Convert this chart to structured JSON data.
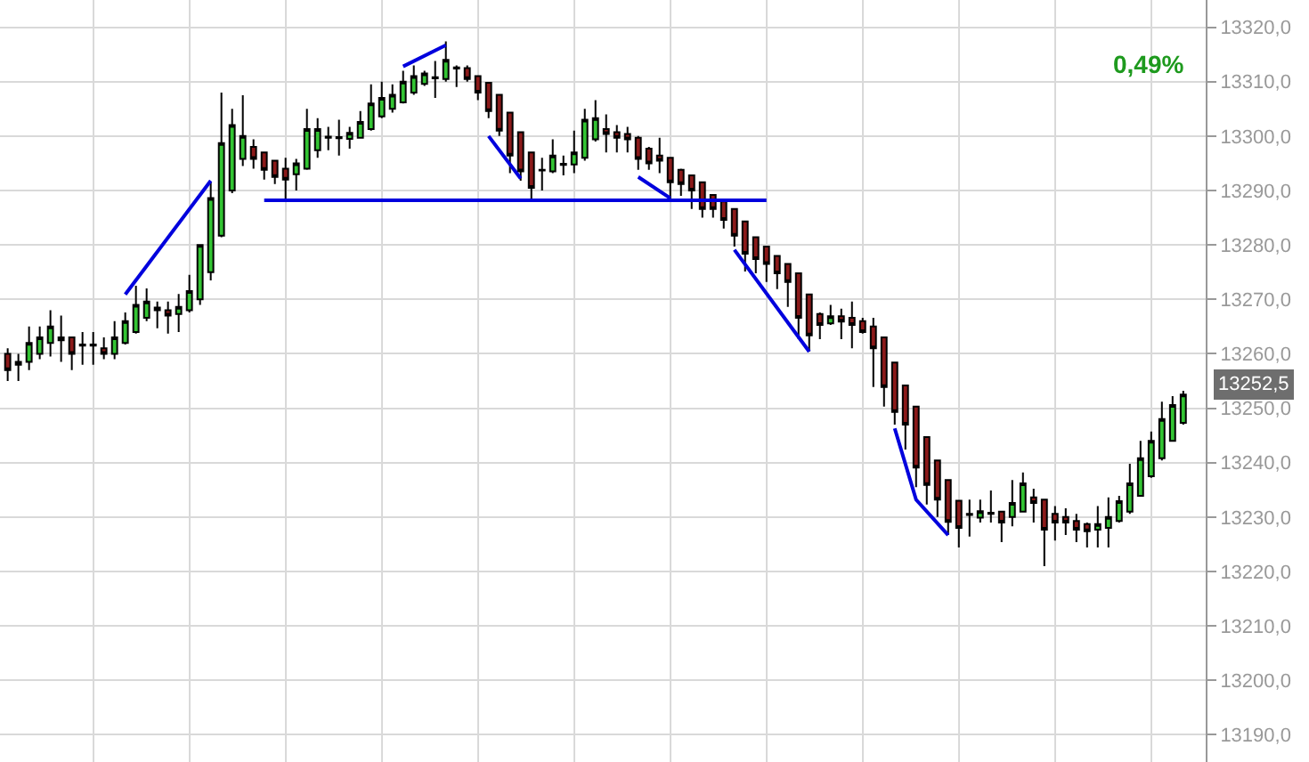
{
  "chart_data": {
    "type": "candlestick",
    "categories": [
      null,
      null,
      null,
      null,
      null,
      null,
      null,
      null,
      null,
      null,
      null,
      null,
      null,
      null,
      null,
      null,
      null,
      null,
      null,
      null,
      null,
      null,
      null,
      null,
      null,
      null,
      null,
      null,
      null,
      null,
      null,
      null,
      null,
      null,
      null,
      null,
      null,
      null,
      null,
      null,
      null,
      null,
      null,
      null,
      null,
      null,
      null,
      null,
      null,
      null,
      null,
      null,
      null,
      null,
      null,
      null,
      null,
      null,
      null,
      null,
      null,
      null,
      null,
      null,
      null,
      null,
      null,
      null,
      null,
      null,
      null,
      null,
      null,
      null,
      null,
      null,
      null,
      null,
      null,
      null,
      null,
      null,
      null,
      null,
      null,
      null,
      null,
      null,
      null,
      null,
      null,
      null,
      null,
      null,
      null,
      null,
      null,
      null,
      null,
      null,
      null,
      null,
      null,
      null,
      null,
      null,
      null,
      null,
      null,
      null,
      null
    ],
    "colors": [
      "#8b1a1a",
      "#000000",
      "#33c433",
      "#33c433",
      "#33c433",
      "#000000",
      "#8b1a1a",
      "#000000",
      "#000000",
      "#8b1a1a",
      "#33c433",
      "#33c433",
      "#33c433",
      "#33c433",
      "#000000",
      "#8b1a1a",
      "#33c433",
      "#33c433",
      "#33c433",
      "#33c433",
      "#33c433",
      "#33c433",
      "#33c433",
      "#8b1a1a",
      "#8b1a1a",
      "#8b1a1a",
      "#8b1a1a",
      "#33c433",
      "#33c433",
      "#33c433",
      "#000000",
      "#000000",
      "#33c433",
      "#33c433",
      "#33c433",
      "#33c433",
      "#33c433",
      "#33c433",
      "#33c433",
      "#33c433",
      "#000000",
      "#33c433",
      "#000000",
      "#8b1a1a",
      "#8b1a1a",
      "#8b1a1a",
      "#8b1a1a",
      "#8b1a1a",
      "#8b1a1a",
      "#8b1a1a",
      "#000000",
      "#33c433",
      "#000000",
      "#33c433",
      "#33c433",
      "#33c433",
      "#8b1a1a",
      "#8b1a1a",
      "#8b1a1a",
      "#8b1a1a",
      "#8b1a1a",
      "#8b1a1a",
      "#8b1a1a",
      "#8b1a1a",
      "#8b1a1a",
      "#8b1a1a",
      "#8b1a1a",
      "#8b1a1a",
      "#8b1a1a",
      "#8b1a1a",
      "#8b1a1a",
      "#8b1a1a",
      "#8b1a1a",
      "#8b1a1a",
      "#8b1a1a",
      "#8b1a1a",
      "#8b1a1a",
      "#33c433",
      "#8b1a1a",
      "#8b1a1a",
      "#8b1a1a",
      "#8b1a1a",
      "#8b1a1a",
      "#8b1a1a",
      "#8b1a1a",
      "#8b1a1a",
      "#8b1a1a",
      "#8b1a1a",
      "#8b1a1a",
      "#8b1a1a",
      "#000000",
      "#33c433",
      "#000000",
      "#8b1a1a",
      "#33c433",
      "#33c433",
      "#8b1a1a",
      "#8b1a1a",
      "#8b1a1a",
      "#8b1a1a",
      "#8b1a1a",
      "#8b1a1a",
      "#33c433",
      "#33c433",
      "#33c433",
      "#33c433",
      "#33c433",
      "#33c433",
      "#33c433",
      "#33c433",
      "#33c433"
    ],
    "ohlc": [
      [
        13260,
        13261,
        13255,
        13257
      ],
      [
        13258,
        13260,
        13255,
        13258.5
      ],
      [
        13258.5,
        13265,
        13257,
        13262
      ],
      [
        13260,
        13265,
        13259,
        13263
      ],
      [
        13262,
        13268,
        13259.5,
        13265
      ],
      [
        13263,
        13267,
        13258.5,
        13262.5
      ],
      [
        13263,
        13263,
        13257,
        13260
      ],
      [
        13261.5,
        13264,
        13258,
        13261.7
      ],
      [
        13261.7,
        13264,
        13258,
        13261.5
      ],
      [
        13261,
        13263,
        13259,
        13260
      ],
      [
        13260,
        13266,
        13259,
        13263
      ],
      [
        13262,
        13267.6,
        13261.7,
        13266
      ],
      [
        13264,
        13272.5,
        13263.7,
        13269
      ],
      [
        13266.6,
        13272,
        13266,
        13269.6
      ],
      [
        13268,
        13269.6,
        13264.7,
        13268.5
      ],
      [
        13268,
        13269.6,
        13263.7,
        13267
      ],
      [
        13267.3,
        13271,
        13264,
        13268.6
      ],
      [
        13268,
        13274.5,
        13267.6,
        13271.5
      ],
      [
        13270,
        13280,
        13269,
        13280
      ],
      [
        13275,
        13291.5,
        13273.5,
        13288.6
      ],
      [
        13281.7,
        13308,
        13281.4,
        13298.7
      ],
      [
        13290,
        13305,
        13289.5,
        13302
      ],
      [
        13295.8,
        13307.5,
        13294.5,
        13300
      ],
      [
        13298,
        13299.4,
        13294,
        13295.8
      ],
      [
        13297,
        13297,
        13292,
        13293.8
      ],
      [
        13295.5,
        13295.5,
        13291.2,
        13292.5
      ],
      [
        13294,
        13296,
        13288,
        13292
      ],
      [
        13293,
        13295.8,
        13290,
        13295
      ],
      [
        13294,
        13305,
        13293.8,
        13301.3
      ],
      [
        13297.4,
        13303.3,
        13296,
        13301.3
      ],
      [
        13299.7,
        13301.7,
        13297.4,
        13299.9
      ],
      [
        13299.8,
        13303,
        13296.4,
        13299.6
      ],
      [
        13299.5,
        13301.7,
        13297.7,
        13300.6
      ],
      [
        13299.7,
        13304.6,
        13299.7,
        13302.6
      ],
      [
        13301.3,
        13309.5,
        13301,
        13306
      ],
      [
        13303.6,
        13310,
        13303.3,
        13307
      ],
      [
        13305,
        13309.5,
        13304.3,
        13307.6
      ],
      [
        13306.2,
        13312,
        13306,
        13310
      ],
      [
        13308,
        13313,
        13307.6,
        13311
      ],
      [
        13309.6,
        13312,
        13309.2,
        13311.5
      ],
      [
        13310.6,
        13313.8,
        13307,
        13310.8
      ],
      [
        13310.5,
        13317.4,
        13310,
        13314
      ],
      [
        13312.6,
        13313,
        13309,
        13312.4
      ],
      [
        13312.5,
        13313,
        13310,
        13310.5
      ],
      [
        13311,
        13311,
        13306.6,
        13308
      ],
      [
        13309.8,
        13309.8,
        13303.3,
        13304.6
      ],
      [
        13307.6,
        13307.6,
        13300,
        13301
      ],
      [
        13304.3,
        13304.3,
        13293.2,
        13296.4
      ],
      [
        13300.7,
        13300.7,
        13291.8,
        13293.5
      ],
      [
        13297,
        13297,
        13288.2,
        13290.5
      ],
      [
        13293.8,
        13296,
        13290,
        13293.7
      ],
      [
        13293.5,
        13299.4,
        13293.2,
        13296.4
      ],
      [
        13294.7,
        13296.4,
        13292.8,
        13294.9
      ],
      [
        13294.8,
        13301,
        13293.2,
        13297
      ],
      [
        13296,
        13305,
        13295.5,
        13303
      ],
      [
        13299.4,
        13306.6,
        13299,
        13303.3
      ],
      [
        13301.3,
        13304,
        13297,
        13300.4
      ],
      [
        13300.7,
        13302,
        13297,
        13299.7
      ],
      [
        13300.4,
        13301.7,
        13297,
        13299.4
      ],
      [
        13299.7,
        13300,
        13293.8,
        13295.8
      ],
      [
        13297.7,
        13298,
        13293.8,
        13295
      ],
      [
        13296.4,
        13299.7,
        13293.2,
        13295.5
      ],
      [
        13296,
        13296,
        13288.2,
        13291.5
      ],
      [
        13293.8,
        13294,
        13289,
        13291.2
      ],
      [
        13292.8,
        13292.8,
        13286.6,
        13290
      ],
      [
        13291.5,
        13291.5,
        13285,
        13286.6
      ],
      [
        13289.2,
        13289.2,
        13285,
        13286.6
      ],
      [
        13288,
        13288,
        13283,
        13284.6
      ],
      [
        13286.6,
        13286.6,
        13279.7,
        13281.7
      ],
      [
        13284.3,
        13284.3,
        13275.1,
        13278.4
      ],
      [
        13281.4,
        13281.4,
        13274.8,
        13277.4
      ],
      [
        13279.7,
        13279.7,
        13273.2,
        13276.5
      ],
      [
        13278,
        13278,
        13271.9,
        13274.8
      ],
      [
        13276.5,
        13276.5,
        13268.6,
        13273.2
      ],
      [
        13274.8,
        13274.8,
        13262.7,
        13266.6
      ],
      [
        13270.9,
        13270.9,
        13260.4,
        13263.4
      ],
      [
        13267.3,
        13267.6,
        13262.7,
        13265.3
      ],
      [
        13265.6,
        13269,
        13265.3,
        13266.9
      ],
      [
        13266.9,
        13268.3,
        13262.7,
        13265.9
      ],
      [
        13266.6,
        13269.6,
        13261,
        13265.3
      ],
      [
        13266,
        13266.6,
        13263.7,
        13264
      ],
      [
        13265,
        13266.6,
        13253.9,
        13261
      ],
      [
        13263,
        13263,
        13250.3,
        13253.9
      ],
      [
        13258.4,
        13258.4,
        13247,
        13249.3
      ],
      [
        13254.2,
        13254.2,
        13242.4,
        13247
      ],
      [
        13250.3,
        13250.3,
        13235.5,
        13239.1
      ],
      [
        13244.7,
        13244.7,
        13232.3,
        13235.9
      ],
      [
        13240.4,
        13240.4,
        13230,
        13233.2
      ],
      [
        13236.8,
        13236.8,
        13226.7,
        13229.1
      ],
      [
        13233,
        13233,
        13224.4,
        13228
      ],
      [
        13230.6,
        13233.2,
        13226.4,
        13230.4
      ],
      [
        13229.9,
        13233.2,
        13229,
        13231.1
      ],
      [
        13230.6,
        13234.9,
        13229,
        13230.8
      ],
      [
        13231,
        13231,
        13225.4,
        13229
      ],
      [
        13230,
        13236.8,
        13228.3,
        13232.6
      ],
      [
        13231,
        13238.2,
        13231,
        13236.2
      ],
      [
        13233.6,
        13235.2,
        13229,
        13232.6
      ],
      [
        13233.2,
        13233.2,
        13221,
        13227.7
      ],
      [
        13230.6,
        13232,
        13225.7,
        13229
      ],
      [
        13230,
        13231.6,
        13226.7,
        13229
      ],
      [
        13229.3,
        13230.6,
        13225.4,
        13227.7
      ],
      [
        13228.7,
        13229,
        13224.4,
        13227.4
      ],
      [
        13227.7,
        13232,
        13224.4,
        13228.7
      ],
      [
        13228,
        13233.6,
        13224.4,
        13230
      ],
      [
        13229.3,
        13233.9,
        13229,
        13232.9
      ],
      [
        13231,
        13239.8,
        13230.6,
        13236.2
      ],
      [
        13233.9,
        13244,
        13233.9,
        13240.8
      ],
      [
        13237.5,
        13245.7,
        13237.2,
        13244
      ],
      [
        13240.8,
        13251.2,
        13240.4,
        13248
      ],
      [
        13244,
        13252.2,
        13244,
        13250.6
      ],
      [
        13247.3,
        13253.2,
        13247,
        13252.5
      ]
    ],
    "series": [
      {
        "type": "line",
        "color": "#0000dd",
        "values": [
          null,
          null,
          null,
          null,
          null,
          null,
          null,
          null,
          null,
          null,
          null,
          13270.9,
          null,
          null,
          null,
          null,
          null,
          null,
          null,
          13291.8,
          null,
          null,
          null,
          null,
          null,
          null,
          null,
          null,
          null,
          null,
          null,
          null,
          null,
          null,
          null,
          null,
          null,
          null,
          null,
          null,
          null,
          null,
          null,
          null,
          null,
          null,
          null,
          null,
          null,
          null,
          null,
          null,
          null,
          null,
          null,
          null,
          null,
          null,
          null,
          null,
          null,
          null,
          null,
          null,
          null,
          null,
          null,
          null,
          null,
          null,
          null,
          null,
          null,
          null,
          null,
          null,
          null,
          null,
          null,
          null,
          null,
          null,
          null,
          null,
          null,
          null,
          null,
          null,
          null,
          null,
          null,
          null,
          null,
          null,
          null,
          null,
          null,
          null,
          null,
          null,
          null,
          null,
          null,
          null,
          null,
          null,
          null,
          null,
          null,
          null,
          null
        ]
      },
      {
        "type": "line",
        "color": "#0000dd",
        "values": [
          null,
          null,
          null,
          null,
          null,
          null,
          null,
          null,
          null,
          null,
          null,
          null,
          null,
          null,
          null,
          null,
          null,
          null,
          null,
          null,
          null,
          null,
          null,
          null,
          null,
          null,
          null,
          null,
          null,
          null,
          null,
          null,
          null,
          null,
          null,
          null,
          null,
          13312.8,
          null,
          null,
          null,
          13316.7,
          null,
          null,
          null,
          null,
          null,
          null,
          null,
          null,
          null,
          null,
          null,
          null,
          null,
          null,
          null,
          null,
          null,
          null,
          null,
          null,
          null,
          null,
          null,
          null,
          null,
          null,
          null,
          null,
          null,
          null,
          null,
          null,
          null,
          null,
          null,
          null,
          null,
          null,
          null,
          null,
          null,
          null,
          null,
          null,
          null,
          null,
          null,
          null,
          null,
          null,
          null,
          null,
          null,
          null,
          null,
          null,
          null,
          null,
          null,
          null,
          null,
          null,
          null,
          null,
          null,
          null,
          null,
          null,
          null
        ]
      },
      {
        "type": "line",
        "color": "#0000dd",
        "values": [
          null,
          null,
          null,
          null,
          null,
          null,
          null,
          null,
          null,
          null,
          null,
          null,
          null,
          null,
          null,
          null,
          null,
          null,
          null,
          null,
          null,
          null,
          null,
          null,
          null,
          null,
          null,
          null,
          null,
          null,
          null,
          null,
          null,
          null,
          null,
          null,
          null,
          null,
          null,
          null,
          null,
          null,
          null,
          null,
          null,
          13300,
          null,
          null,
          13292.2,
          null,
          null,
          null,
          null,
          null,
          null,
          null,
          null,
          null,
          null,
          null,
          null,
          null,
          null,
          null,
          null,
          null,
          null,
          null,
          null,
          null,
          null,
          null,
          null,
          null,
          null,
          null,
          null,
          null,
          null,
          null,
          null,
          null,
          null,
          null,
          null,
          null,
          null,
          null,
          null,
          null,
          null,
          null,
          null,
          null,
          null,
          null,
          null,
          null,
          null,
          null,
          null,
          null,
          null,
          null,
          null,
          null,
          null,
          null,
          null,
          null,
          null
        ]
      },
      {
        "type": "line",
        "color": "#0000dd",
        "values": [
          null,
          null,
          null,
          null,
          null,
          null,
          null,
          null,
          null,
          null,
          null,
          null,
          null,
          null,
          null,
          null,
          null,
          null,
          null,
          null,
          null,
          null,
          null,
          null,
          13288.2,
          null,
          null,
          null,
          null,
          null,
          null,
          null,
          null,
          null,
          null,
          null,
          null,
          null,
          null,
          null,
          null,
          null,
          null,
          null,
          null,
          null,
          null,
          null,
          null,
          null,
          null,
          null,
          null,
          null,
          null,
          null,
          null,
          null,
          null,
          null,
          null,
          null,
          null,
          null,
          null,
          null,
          null,
          null,
          null,
          null,
          null,
          13288.2,
          null,
          null,
          null,
          null,
          null,
          null,
          null,
          null,
          null,
          null,
          null,
          null,
          null,
          null,
          null,
          null,
          null,
          null,
          null,
          null,
          null,
          null,
          null,
          null,
          null,
          null,
          null,
          null,
          null,
          null,
          null,
          null,
          null,
          null,
          null,
          null,
          null,
          null,
          null
        ]
      },
      {
        "type": "line",
        "color": "#0000dd",
        "values": [
          null,
          null,
          null,
          null,
          null,
          null,
          null,
          null,
          null,
          null,
          null,
          null,
          null,
          null,
          null,
          null,
          null,
          null,
          null,
          null,
          null,
          null,
          null,
          null,
          null,
          null,
          null,
          null,
          null,
          null,
          null,
          null,
          null,
          null,
          null,
          null,
          null,
          null,
          null,
          null,
          null,
          null,
          null,
          null,
          null,
          null,
          null,
          null,
          null,
          null,
          null,
          null,
          null,
          null,
          null,
          null,
          null,
          null,
          null,
          13292.5,
          null,
          null,
          13288.6,
          null,
          null,
          null,
          null,
          null,
          null,
          null,
          null,
          null,
          null,
          null,
          null,
          null,
          null,
          null,
          null,
          null,
          null,
          null,
          null,
          null,
          null,
          null,
          null,
          null,
          null,
          null,
          null,
          null,
          null,
          null,
          null,
          null,
          null,
          null,
          null,
          null,
          null,
          null,
          null,
          null,
          null,
          null,
          null,
          null,
          null,
          null,
          null
        ]
      },
      {
        "type": "line",
        "color": "#0000dd",
        "values": [
          null,
          null,
          null,
          null,
          null,
          null,
          null,
          null,
          null,
          null,
          null,
          null,
          null,
          null,
          null,
          null,
          null,
          null,
          null,
          null,
          null,
          null,
          null,
          null,
          null,
          null,
          null,
          null,
          null,
          null,
          null,
          null,
          null,
          null,
          null,
          null,
          null,
          null,
          null,
          null,
          null,
          null,
          null,
          null,
          null,
          null,
          null,
          null,
          null,
          null,
          null,
          null,
          null,
          null,
          null,
          null,
          null,
          null,
          null,
          null,
          null,
          null,
          null,
          null,
          null,
          null,
          null,
          null,
          13279.1,
          null,
          null,
          null,
          null,
          null,
          null,
          13260.4,
          null,
          null,
          null,
          null,
          null,
          null,
          null,
          null,
          null,
          null,
          null,
          null,
          null,
          null,
          null,
          null,
          null,
          null,
          null,
          null,
          null,
          null,
          null,
          null,
          null,
          null,
          null,
          null,
          null,
          null,
          null,
          null,
          null,
          null,
          null
        ]
      },
      {
        "type": "line",
        "color": "#0000dd",
        "values": [
          null,
          null,
          null,
          null,
          null,
          null,
          null,
          null,
          null,
          null,
          null,
          null,
          null,
          null,
          null,
          null,
          null,
          null,
          null,
          null,
          null,
          null,
          null,
          null,
          null,
          null,
          null,
          null,
          null,
          null,
          null,
          null,
          null,
          null,
          null,
          null,
          null,
          null,
          null,
          null,
          null,
          null,
          null,
          null,
          null,
          null,
          null,
          null,
          null,
          null,
          null,
          null,
          null,
          null,
          null,
          null,
          null,
          null,
          null,
          null,
          null,
          null,
          null,
          null,
          null,
          null,
          null,
          null,
          null,
          null,
          null,
          null,
          null,
          null,
          null,
          null,
          null,
          null,
          null,
          null,
          null,
          null,
          null,
          13246.3,
          null,
          13233.2,
          null,
          null,
          13226.7,
          null,
          null,
          null,
          null,
          null,
          null,
          null,
          null,
          null,
          null,
          null,
          null,
          null,
          null,
          null,
          null,
          null,
          null,
          null,
          null,
          null,
          null
        ]
      }
    ],
    "annotations": [
      "0,49%",
      "13252,5"
    ],
    "ylim": [
      13185,
      13325
    ],
    "yticks": [
      {
        "value": 13190,
        "label": "13190,0"
      },
      {
        "value": 13200,
        "label": "13200,0"
      },
      {
        "value": 13210,
        "label": "13210,0"
      },
      {
        "value": 13220,
        "label": "13220,0"
      },
      {
        "value": 13230,
        "label": "13230,0"
      },
      {
        "value": 13240,
        "label": "13240,0"
      },
      {
        "value": 13250,
        "label": "13250,0"
      },
      {
        "value": 13260,
        "label": "13260,0"
      },
      {
        "value": 13270,
        "label": "13270,0"
      },
      {
        "value": 13280,
        "label": "13280,0"
      },
      {
        "value": 13290,
        "label": "13290,0"
      },
      {
        "value": 13300,
        "label": "13300,0"
      },
      {
        "value": 13310,
        "label": "13310,0"
      },
      {
        "value": 13320,
        "label": "13320,0"
      }
    ],
    "grid": true,
    "tick_labels": "y",
    "marker": "none",
    "line_style": "solid"
  }
}
